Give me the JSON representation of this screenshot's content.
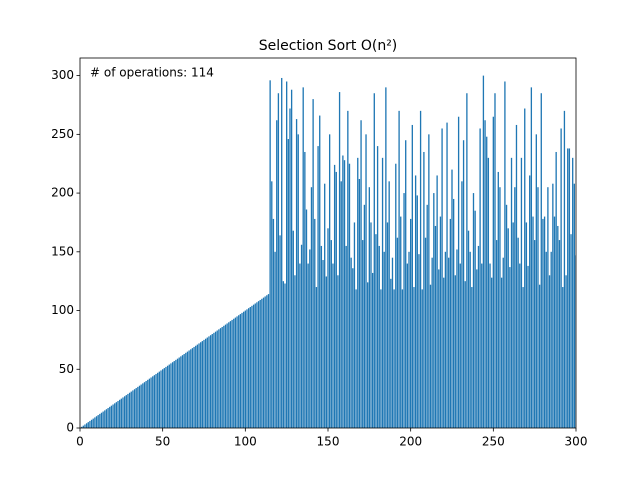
{
  "chart_data": {
    "type": "bar",
    "title": "Selection Sort O(n²)",
    "annotation": "# of operations: 114",
    "color": "#1f77b4",
    "x": [
      1,
      2,
      3,
      4,
      5,
      6,
      7,
      8,
      9,
      10,
      11,
      12,
      13,
      14,
      15,
      16,
      17,
      18,
      19,
      20,
      21,
      22,
      23,
      24,
      25,
      26,
      27,
      28,
      29,
      30,
      31,
      32,
      33,
      34,
      35,
      36,
      37,
      38,
      39,
      40,
      41,
      42,
      43,
      44,
      45,
      46,
      47,
      48,
      49,
      50,
      51,
      52,
      53,
      54,
      55,
      56,
      57,
      58,
      59,
      60,
      61,
      62,
      63,
      64,
      65,
      66,
      67,
      68,
      69,
      70,
      71,
      72,
      73,
      74,
      75,
      76,
      77,
      78,
      79,
      80,
      81,
      82,
      83,
      84,
      85,
      86,
      87,
      88,
      89,
      90,
      91,
      92,
      93,
      94,
      95,
      96,
      97,
      98,
      99,
      100,
      101,
      102,
      103,
      104,
      105,
      106,
      107,
      108,
      109,
      110,
      111,
      112,
      113,
      114,
      115,
      116,
      117,
      118,
      119,
      120,
      121,
      122,
      123,
      124,
      125,
      126,
      127,
      128,
      129,
      130,
      131,
      132,
      133,
      134,
      135,
      136,
      137,
      138,
      139,
      140,
      141,
      142,
      143,
      144,
      145,
      146,
      147,
      148,
      149,
      150,
      151,
      152,
      153,
      154,
      155,
      156,
      157,
      158,
      159,
      160,
      161,
      162,
      163,
      164,
      165,
      166,
      167,
      168,
      169,
      170,
      171,
      172,
      173,
      174,
      175,
      176,
      177,
      178,
      179,
      180,
      181,
      182,
      183,
      184,
      185,
      186,
      187,
      188,
      189,
      190,
      191,
      192,
      193,
      194,
      195,
      196,
      197,
      198,
      199,
      200,
      201,
      202,
      203,
      204,
      205,
      206,
      207,
      208,
      209,
      210,
      211,
      212,
      213,
      214,
      215,
      216,
      217,
      218,
      219,
      220,
      221,
      222,
      223,
      224,
      225,
      226,
      227,
      228,
      229,
      230,
      231,
      232,
      233,
      234,
      235,
      236,
      237,
      238,
      239,
      240,
      241,
      242,
      243,
      244,
      245,
      246,
      247,
      248,
      249,
      250,
      251,
      252,
      253,
      254,
      255,
      256,
      257,
      258,
      259,
      260,
      261,
      262,
      263,
      264,
      265,
      266,
      267,
      268,
      269,
      270,
      271,
      272,
      273,
      274,
      275,
      276,
      277,
      278,
      279,
      280,
      281,
      282,
      283,
      284,
      285,
      286,
      287,
      288,
      289,
      290,
      291,
      292,
      293,
      294,
      295,
      296,
      297,
      298,
      299,
      300
    ],
    "values": [
      1,
      2,
      3,
      4,
      5,
      6,
      7,
      8,
      9,
      10,
      11,
      12,
      13,
      14,
      15,
      16,
      17,
      18,
      19,
      20,
      21,
      22,
      23,
      24,
      25,
      26,
      27,
      28,
      29,
      30,
      31,
      32,
      33,
      34,
      35,
      36,
      37,
      38,
      39,
      40,
      41,
      42,
      43,
      44,
      45,
      46,
      47,
      48,
      49,
      50,
      51,
      52,
      53,
      54,
      55,
      56,
      57,
      58,
      59,
      60,
      61,
      62,
      63,
      64,
      65,
      66,
      67,
      68,
      69,
      70,
      71,
      72,
      73,
      74,
      75,
      76,
      77,
      78,
      79,
      80,
      81,
      82,
      83,
      84,
      85,
      86,
      87,
      88,
      89,
      90,
      91,
      92,
      93,
      94,
      95,
      96,
      97,
      98,
      99,
      100,
      101,
      102,
      103,
      104,
      105,
      106,
      107,
      108,
      109,
      110,
      111,
      112,
      113,
      114,
      296,
      210,
      178,
      150,
      262,
      285,
      164,
      298,
      125,
      123,
      295,
      246,
      272,
      288,
      168,
      130,
      263,
      250,
      140,
      156,
      290,
      235,
      186,
      140,
      152,
      205,
      280,
      178,
      120,
      240,
      266,
      155,
      143,
      208,
      129,
      170,
      250,
      160,
      140,
      224,
      218,
      130,
      286,
      210,
      232,
      228,
      155,
      270,
      225,
      145,
      136,
      175,
      118,
      230,
      212,
      262,
      160,
      190,
      250,
      124,
      205,
      175,
      132,
      285,
      165,
      240,
      155,
      118,
      230,
      150,
      290,
      175,
      210,
      127,
      145,
      118,
      225,
      162,
      270,
      180,
      118,
      200,
      245,
      140,
      150,
      178,
      258,
      120,
      215,
      198,
      148,
      270,
      118,
      235,
      162,
      190,
      250,
      122,
      145,
      200,
      172,
      215,
      135,
      180,
      255,
      128,
      150,
      260,
      145,
      178,
      220,
      195,
      130,
      152,
      265,
      140,
      210,
      245,
      125,
      285,
      168,
      150,
      120,
      200,
      185,
      135,
      155,
      255,
      140,
      300,
      262,
      248,
      230,
      140,
      128,
      265,
      285,
      160,
      218,
      205,
      128,
      145,
      295,
      190,
      170,
      137,
      230,
      175,
      205,
      258,
      162,
      140,
      230,
      120,
      272,
      175,
      138,
      215,
      290,
      180,
      160,
      250,
      205,
      122,
      285,
      178,
      180,
      150,
      205,
      130,
      150,
      208,
      180,
      235,
      172,
      160,
      255,
      120,
      270,
      130,
      238,
      238,
      165,
      230,
      208,
      147
    ],
    "xlim": [
      0,
      300
    ],
    "xticks": [
      0,
      50,
      100,
      150,
      200,
      250,
      300
    ],
    "ylim": [
      0,
      315
    ],
    "yticks": [
      0,
      50,
      100,
      150,
      200,
      250,
      300
    ]
  }
}
